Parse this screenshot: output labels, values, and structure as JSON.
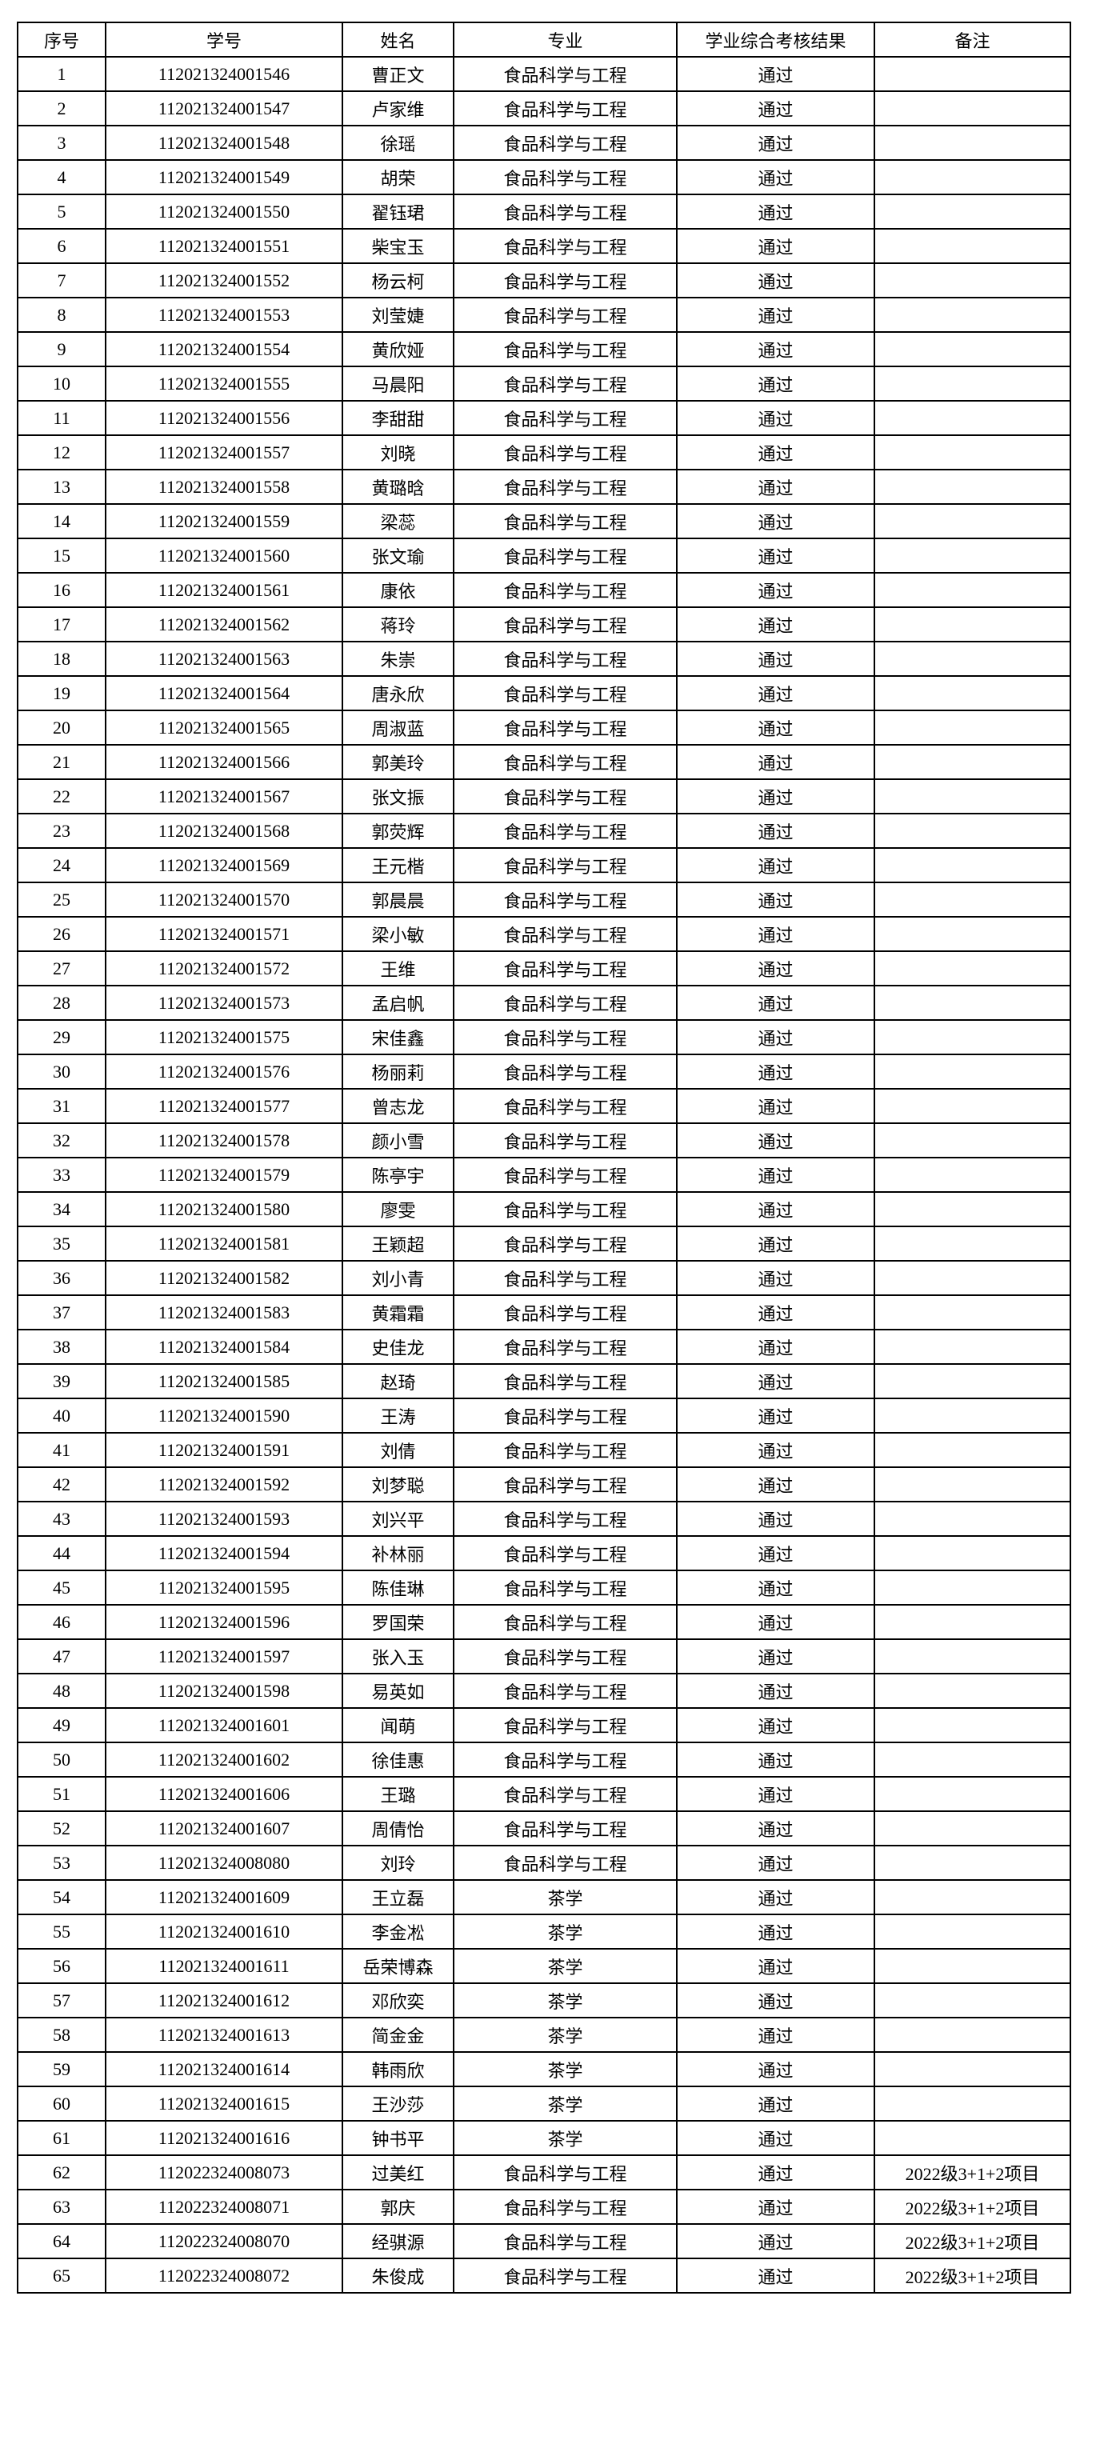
{
  "headers": [
    "序号",
    "学号",
    "姓名",
    "专业",
    "学业综合考核结果",
    "备注"
  ],
  "rows": [
    [
      "1",
      "112021324001546",
      "曹正文",
      "食品科学与工程",
      "通过",
      ""
    ],
    [
      "2",
      "112021324001547",
      "卢家维",
      "食品科学与工程",
      "通过",
      ""
    ],
    [
      "3",
      "112021324001548",
      "徐瑶",
      "食品科学与工程",
      "通过",
      ""
    ],
    [
      "4",
      "112021324001549",
      "胡荣",
      "食品科学与工程",
      "通过",
      ""
    ],
    [
      "5",
      "112021324001550",
      "翟钰珺",
      "食品科学与工程",
      "通过",
      ""
    ],
    [
      "6",
      "112021324001551",
      "柴宝玉",
      "食品科学与工程",
      "通过",
      ""
    ],
    [
      "7",
      "112021324001552",
      "杨云柯",
      "食品科学与工程",
      "通过",
      ""
    ],
    [
      "8",
      "112021324001553",
      "刘莹婕",
      "食品科学与工程",
      "通过",
      ""
    ],
    [
      "9",
      "112021324001554",
      "黄欣娅",
      "食品科学与工程",
      "通过",
      ""
    ],
    [
      "10",
      "112021324001555",
      "马晨阳",
      "食品科学与工程",
      "通过",
      ""
    ],
    [
      "11",
      "112021324001556",
      "李甜甜",
      "食品科学与工程",
      "通过",
      ""
    ],
    [
      "12",
      "112021324001557",
      "刘晓",
      "食品科学与工程",
      "通过",
      ""
    ],
    [
      "13",
      "112021324001558",
      "黄璐晗",
      "食品科学与工程",
      "通过",
      ""
    ],
    [
      "14",
      "112021324001559",
      "梁蕊",
      "食品科学与工程",
      "通过",
      ""
    ],
    [
      "15",
      "112021324001560",
      "张文瑜",
      "食品科学与工程",
      "通过",
      ""
    ],
    [
      "16",
      "112021324001561",
      "康依",
      "食品科学与工程",
      "通过",
      ""
    ],
    [
      "17",
      "112021324001562",
      "蒋玲",
      "食品科学与工程",
      "通过",
      ""
    ],
    [
      "18",
      "112021324001563",
      "朱崇",
      "食品科学与工程",
      "通过",
      ""
    ],
    [
      "19",
      "112021324001564",
      "唐永欣",
      "食品科学与工程",
      "通过",
      ""
    ],
    [
      "20",
      "112021324001565",
      "周淑蓝",
      "食品科学与工程",
      "通过",
      ""
    ],
    [
      "21",
      "112021324001566",
      "郭美玲",
      "食品科学与工程",
      "通过",
      ""
    ],
    [
      "22",
      "112021324001567",
      "张文振",
      "食品科学与工程",
      "通过",
      ""
    ],
    [
      "23",
      "112021324001568",
      "郭荧辉",
      "食品科学与工程",
      "通过",
      ""
    ],
    [
      "24",
      "112021324001569",
      "王元楷",
      "食品科学与工程",
      "通过",
      ""
    ],
    [
      "25",
      "112021324001570",
      "郭晨晨",
      "食品科学与工程",
      "通过",
      ""
    ],
    [
      "26",
      "112021324001571",
      "梁小敏",
      "食品科学与工程",
      "通过",
      ""
    ],
    [
      "27",
      "112021324001572",
      "王维",
      "食品科学与工程",
      "通过",
      ""
    ],
    [
      "28",
      "112021324001573",
      "孟启帆",
      "食品科学与工程",
      "通过",
      ""
    ],
    [
      "29",
      "112021324001575",
      "宋佳鑫",
      "食品科学与工程",
      "通过",
      ""
    ],
    [
      "30",
      "112021324001576",
      "杨丽莉",
      "食品科学与工程",
      "通过",
      ""
    ],
    [
      "31",
      "112021324001577",
      "曾志龙",
      "食品科学与工程",
      "通过",
      ""
    ],
    [
      "32",
      "112021324001578",
      "颜小雪",
      "食品科学与工程",
      "通过",
      ""
    ],
    [
      "33",
      "112021324001579",
      "陈亭宇",
      "食品科学与工程",
      "通过",
      ""
    ],
    [
      "34",
      "112021324001580",
      "廖雯",
      "食品科学与工程",
      "通过",
      ""
    ],
    [
      "35",
      "112021324001581",
      "王颖超",
      "食品科学与工程",
      "通过",
      ""
    ],
    [
      "36",
      "112021324001582",
      "刘小青",
      "食品科学与工程",
      "通过",
      ""
    ],
    [
      "37",
      "112021324001583",
      "黄霜霜",
      "食品科学与工程",
      "通过",
      ""
    ],
    [
      "38",
      "112021324001584",
      "史佳龙",
      "食品科学与工程",
      "通过",
      ""
    ],
    [
      "39",
      "112021324001585",
      "赵琦",
      "食品科学与工程",
      "通过",
      ""
    ],
    [
      "40",
      "112021324001590",
      "王涛",
      "食品科学与工程",
      "通过",
      ""
    ],
    [
      "41",
      "112021324001591",
      "刘倩",
      "食品科学与工程",
      "通过",
      ""
    ],
    [
      "42",
      "112021324001592",
      "刘梦聪",
      "食品科学与工程",
      "通过",
      ""
    ],
    [
      "43",
      "112021324001593",
      "刘兴平",
      "食品科学与工程",
      "通过",
      ""
    ],
    [
      "44",
      "112021324001594",
      "补林丽",
      "食品科学与工程",
      "通过",
      ""
    ],
    [
      "45",
      "112021324001595",
      "陈佳琳",
      "食品科学与工程",
      "通过",
      ""
    ],
    [
      "46",
      "112021324001596",
      "罗国荣",
      "食品科学与工程",
      "通过",
      ""
    ],
    [
      "47",
      "112021324001597",
      "张入玉",
      "食品科学与工程",
      "通过",
      ""
    ],
    [
      "48",
      "112021324001598",
      "易英如",
      "食品科学与工程",
      "通过",
      ""
    ],
    [
      "49",
      "112021324001601",
      "闻萌",
      "食品科学与工程",
      "通过",
      ""
    ],
    [
      "50",
      "112021324001602",
      "徐佳惠",
      "食品科学与工程",
      "通过",
      ""
    ],
    [
      "51",
      "112021324001606",
      "王璐",
      "食品科学与工程",
      "通过",
      ""
    ],
    [
      "52",
      "112021324001607",
      "周倩怡",
      "食品科学与工程",
      "通过",
      ""
    ],
    [
      "53",
      "112021324008080",
      "刘玲",
      "食品科学与工程",
      "通过",
      ""
    ],
    [
      "54",
      "112021324001609",
      "王立磊",
      "茶学",
      "通过",
      ""
    ],
    [
      "55",
      "112021324001610",
      "李金凇",
      "茶学",
      "通过",
      ""
    ],
    [
      "56",
      "112021324001611",
      "岳荣博森",
      "茶学",
      "通过",
      ""
    ],
    [
      "57",
      "112021324001612",
      "邓欣奕",
      "茶学",
      "通过",
      ""
    ],
    [
      "58",
      "112021324001613",
      "简金金",
      "茶学",
      "通过",
      ""
    ],
    [
      "59",
      "112021324001614",
      "韩雨欣",
      "茶学",
      "通过",
      ""
    ],
    [
      "60",
      "112021324001615",
      "王沙莎",
      "茶学",
      "通过",
      ""
    ],
    [
      "61",
      "112021324001616",
      "钟书平",
      "茶学",
      "通过",
      ""
    ],
    [
      "62",
      "112022324008073",
      "过美红",
      "食品科学与工程",
      "通过",
      "2022级3+1+2项目"
    ],
    [
      "63",
      "112022324008071",
      "郭庆",
      "食品科学与工程",
      "通过",
      "2022级3+1+2项目"
    ],
    [
      "64",
      "112022324008070",
      "经骐源",
      "食品科学与工程",
      "通过",
      "2022级3+1+2项目"
    ],
    [
      "65",
      "112022324008072",
      "朱俊成",
      "食品科学与工程",
      "通过",
      "2022级3+1+2项目"
    ]
  ]
}
